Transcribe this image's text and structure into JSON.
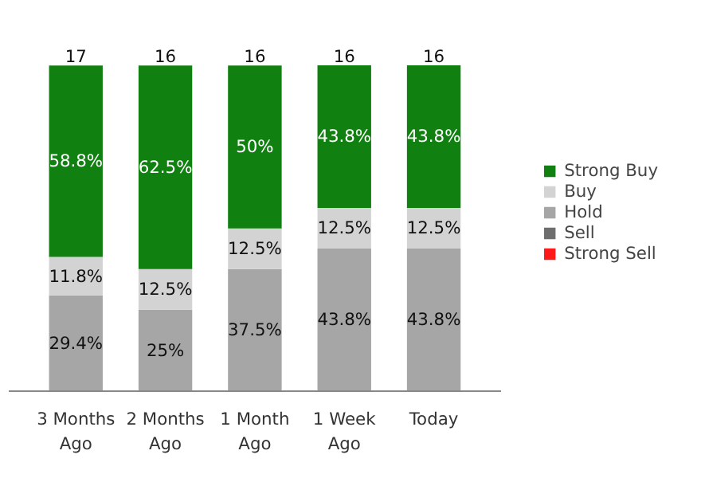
{
  "chart_data": {
    "type": "bar",
    "stacked": true,
    "categories": [
      "3 Months Ago",
      "2 Months Ago",
      "1 Month Ago",
      "1 Week Ago",
      "Today"
    ],
    "series": [
      {
        "name": "Strong Sell",
        "color": "#ff1a1a",
        "values": [
          null,
          null,
          null,
          null,
          null
        ]
      },
      {
        "name": "Sell",
        "color": "#6e6e6e",
        "values": [
          null,
          null,
          null,
          null,
          null
        ]
      },
      {
        "name": "Hold",
        "color": "#a6a6a6",
        "values": [
          29.4,
          25,
          37.5,
          43.8,
          43.8
        ],
        "value_labels": [
          "29.4%",
          "25%",
          "37.5%",
          "43.8%",
          "43.8%"
        ]
      },
      {
        "name": "Buy",
        "color": "#d3d3d3",
        "values": [
          11.8,
          12.5,
          12.5,
          12.5,
          12.5
        ],
        "value_labels": [
          "11.8%",
          "12.5%",
          "12.5%",
          "12.5%",
          "12.5%"
        ]
      },
      {
        "name": "Strong Buy",
        "color": "#108010",
        "values": [
          58.8,
          62.5,
          50,
          43.8,
          43.8
        ],
        "value_labels": [
          "58.8%",
          "62.5%",
          "50%",
          "43.8%",
          "43.8%"
        ]
      }
    ],
    "annotations": [
      "17",
      "16",
      "16",
      "16",
      "16"
    ],
    "legend": "right",
    "grid": false
  }
}
